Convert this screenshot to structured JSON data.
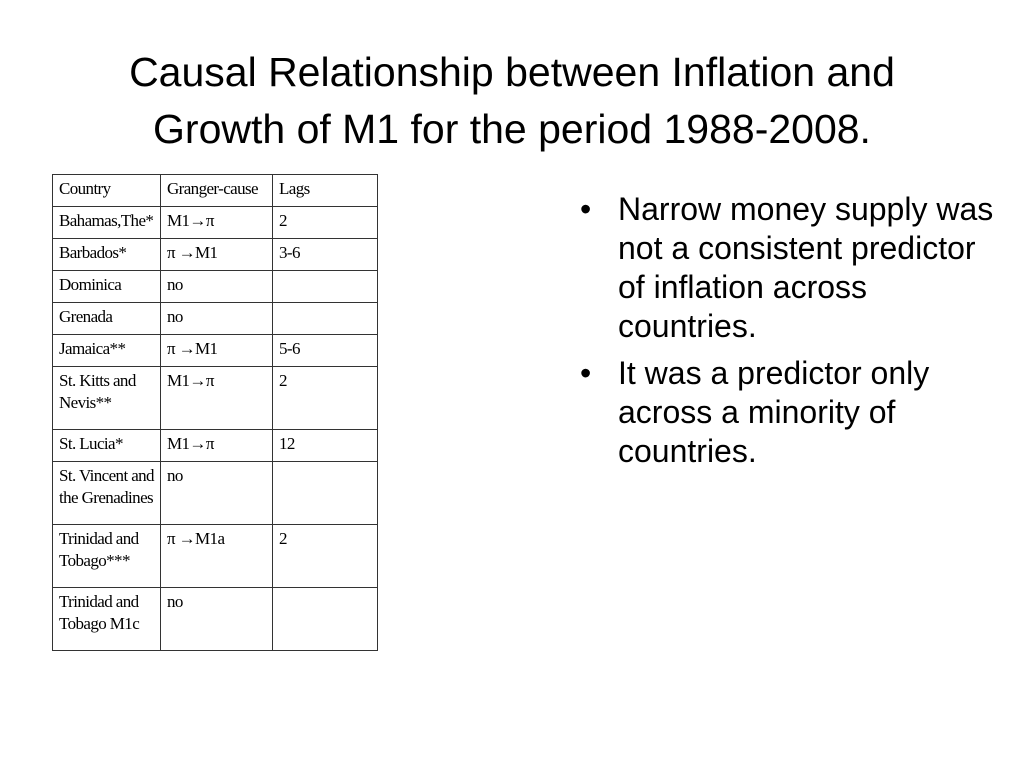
{
  "title": {
    "line1": "Causal Relationship between Inflation and",
    "line2": "Growth of M1 for the period 1988-2008."
  },
  "table": {
    "headers": [
      "Country",
      "Granger-cause",
      "Lags"
    ],
    "rows": [
      {
        "country": [
          "Bahamas,The*"
        ],
        "cause": "M1→π",
        "lags": "2"
      },
      {
        "country": [
          "Barbados*"
        ],
        "cause": "π →M1",
        "lags": "3-6"
      },
      {
        "country": [
          "Dominica"
        ],
        "cause": "no",
        "lags": ""
      },
      {
        "country": [
          "Grenada"
        ],
        "cause": "no",
        "lags": ""
      },
      {
        "country": [
          "Jamaica**"
        ],
        "cause": "π →M1",
        "lags": "5-6"
      },
      {
        "country": [
          "St. Kitts and",
          "Nevis**"
        ],
        "cause": "M1→π",
        "lags": "2"
      },
      {
        "country": [
          "St. Lucia*"
        ],
        "cause": "M1→π",
        "lags": "12"
      },
      {
        "country": [
          "St. Vincent and",
          "the Grenadines"
        ],
        "cause": "no",
        "lags": ""
      },
      {
        "country": [
          "Trinidad and",
          "Tobago***"
        ],
        "cause": "π →M1a",
        "lags": "2"
      },
      {
        "country": [
          "Trinidad and",
          "Tobago  M1c"
        ],
        "cause": "no",
        "lags": ""
      }
    ]
  },
  "bullets": [
    "Narrow money supply was not a consistent predictor of inflation across countries.",
    "It was a predictor only across a minority of countries."
  ],
  "bullet_symbol": "•"
}
